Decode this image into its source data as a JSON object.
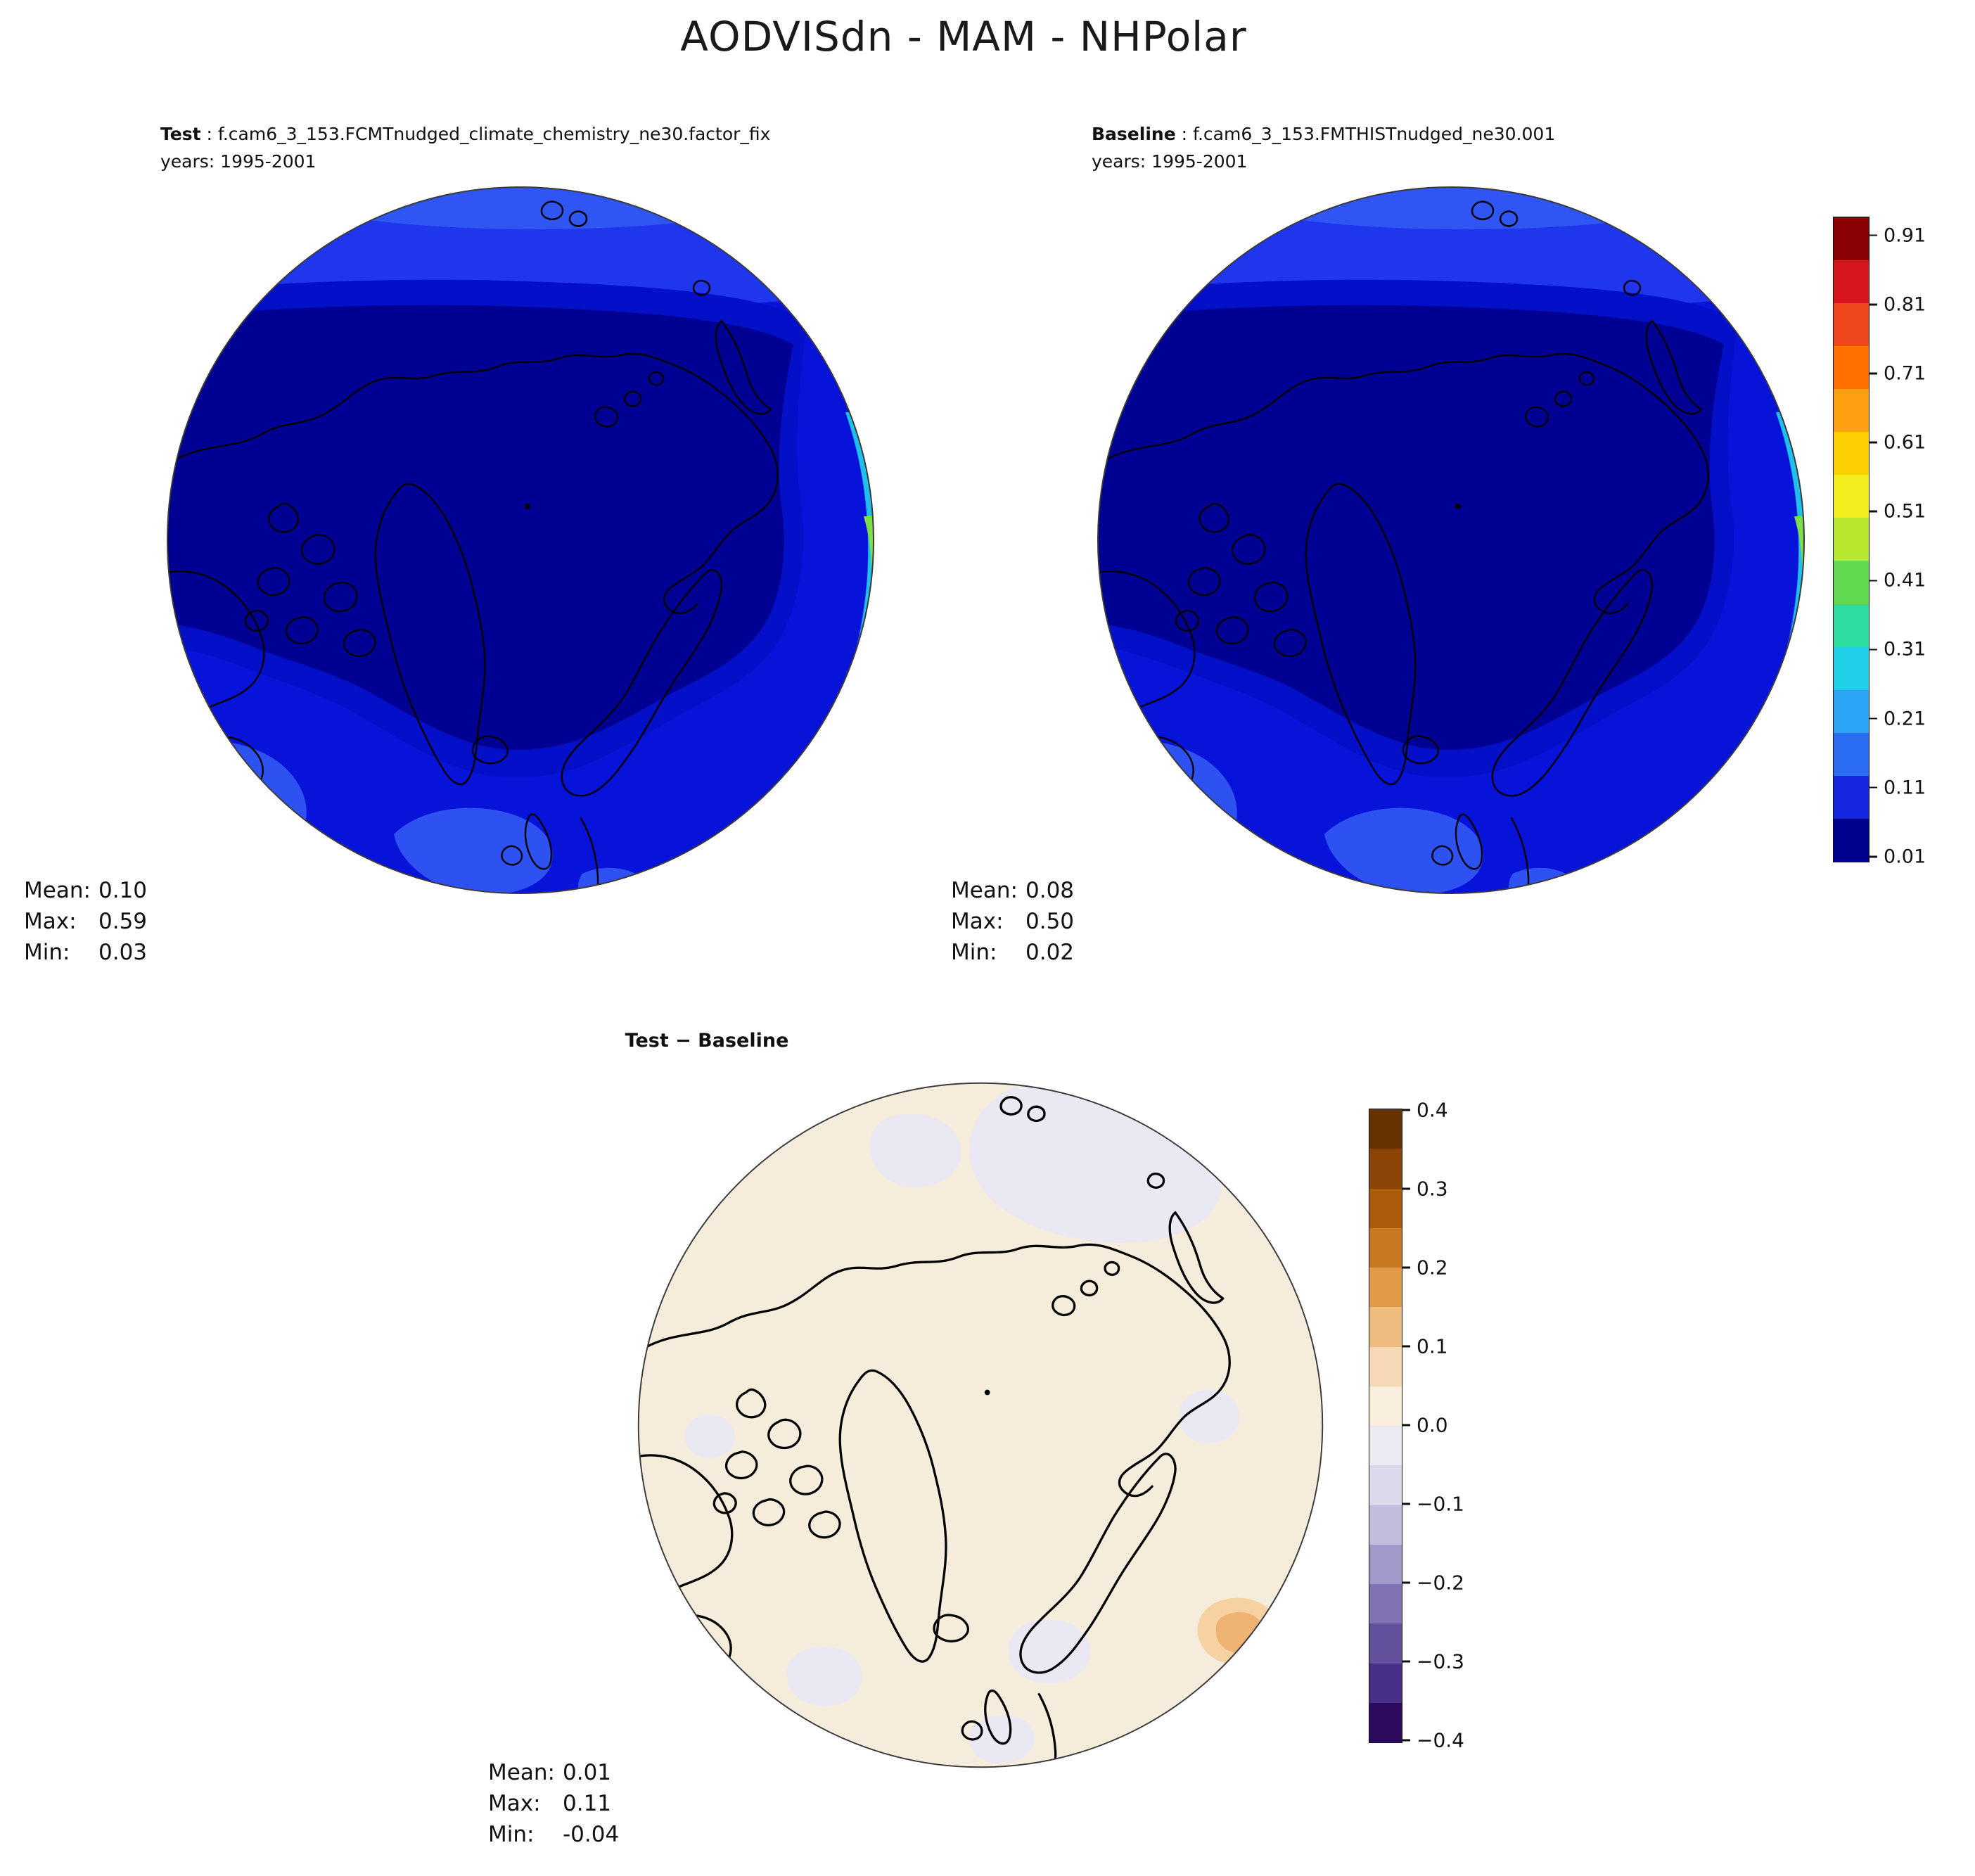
{
  "title": "AODVISdn - MAM - NHPolar",
  "test_panel": {
    "label": "Test",
    "separator": " : ",
    "run": "f.cam6_3_153.FCMTnudged_climate_chemistry_ne30.factor_fix",
    "years": "years: 1995-2001",
    "stats_rows": [
      [
        "Mean:",
        "0.10"
      ],
      [
        "Max:",
        "0.59"
      ],
      [
        "Min:",
        "0.03"
      ]
    ]
  },
  "baseline_panel": {
    "label": "Baseline",
    "separator": " : ",
    "run": "f.cam6_3_153.FMTHISTnudged_ne30.001",
    "years": "years: 1995-2001",
    "stats_rows": [
      [
        "Mean:",
        "0.08"
      ],
      [
        "Max:",
        "0.50"
      ],
      [
        "Min:",
        "0.02"
      ]
    ]
  },
  "diff_panel": {
    "title": "Test − Baseline",
    "stats_rows": [
      [
        "Mean:",
        "0.01"
      ],
      [
        "Max:",
        "0.11"
      ],
      [
        "Min:",
        "-0.04"
      ]
    ]
  },
  "colorbar_main": {
    "ticks": [
      "0.91",
      "0.81",
      "0.71",
      "0.61",
      "0.51",
      "0.41",
      "0.31",
      "0.21",
      "0.11",
      "0.01"
    ],
    "colors_top_to_bottom": [
      "#8b0000",
      "#d8161f",
      "#f0461c",
      "#ff7000",
      "#ffa010",
      "#ffd100",
      "#f2ee1e",
      "#b7e62e",
      "#62d850",
      "#2edea0",
      "#20cfe8",
      "#2ba4f5",
      "#2a6cf2",
      "#1527e0",
      "#00008f"
    ]
  },
  "colorbar_diff": {
    "ticks": [
      "0.4",
      "0.3",
      "0.2",
      "0.1",
      "0.0",
      "−0.1",
      "−0.2",
      "−0.3",
      "−0.4"
    ],
    "colors_top_to_bottom": [
      "#663300",
      "#8a4506",
      "#aa5c0a",
      "#c87820",
      "#e09a48",
      "#edbc7e",
      "#f6d9b4",
      "#faeedd",
      "#ecebf4",
      "#dcd9ec",
      "#c3bcdd",
      "#a399c9",
      "#8274b4",
      "#64519e",
      "#48308a",
      "#2d0a5e"
    ]
  },
  "chart_data": {
    "type": "heatmap",
    "subtype": "north-polar stereographic filled-contour maps",
    "variable": "AODVISdn",
    "season": "MAM",
    "region": "NHPolar",
    "panels": [
      {
        "name": "Test",
        "case": "f.cam6_3_153.FCMTnudged_climate_chemistry_ne30.factor_fix",
        "years": "1995-2001",
        "mean": 0.1,
        "max": 0.59,
        "min": 0.03
      },
      {
        "name": "Baseline",
        "case": "f.cam6_3_153.FMTHISTnudged_ne30.001",
        "years": "1995-2001",
        "mean": 0.08,
        "max": 0.5,
        "min": 0.02
      },
      {
        "name": "Test − Baseline",
        "mean": 0.01,
        "max": 0.11,
        "min": -0.04
      }
    ],
    "value_colorbar_ticks": [
      0.01,
      0.11,
      0.21,
      0.31,
      0.41,
      0.51,
      0.61,
      0.71,
      0.81,
      0.91
    ],
    "diff_colorbar_ticks": [
      0.4,
      0.3,
      0.2,
      0.1,
      0.0,
      -0.1,
      -0.2,
      -0.3,
      -0.4
    ],
    "legend_position": "right",
    "grid": false,
    "description": "Test and Baseline maps are dominated by low AOD (0.01-0.11, dark blue) over the central Arctic, rising to 0.11-0.31 (brighter blues) near the map rim, with narrow cyan/green/yellow maxima (up to ~0.6) along the lower-right (Eurasian) edge. The Test−Baseline difference map is near zero: mostly +0.0 to +0.1 (cream) with faint negative lavender patches and small positive orange spots near the lower-right edge."
  }
}
